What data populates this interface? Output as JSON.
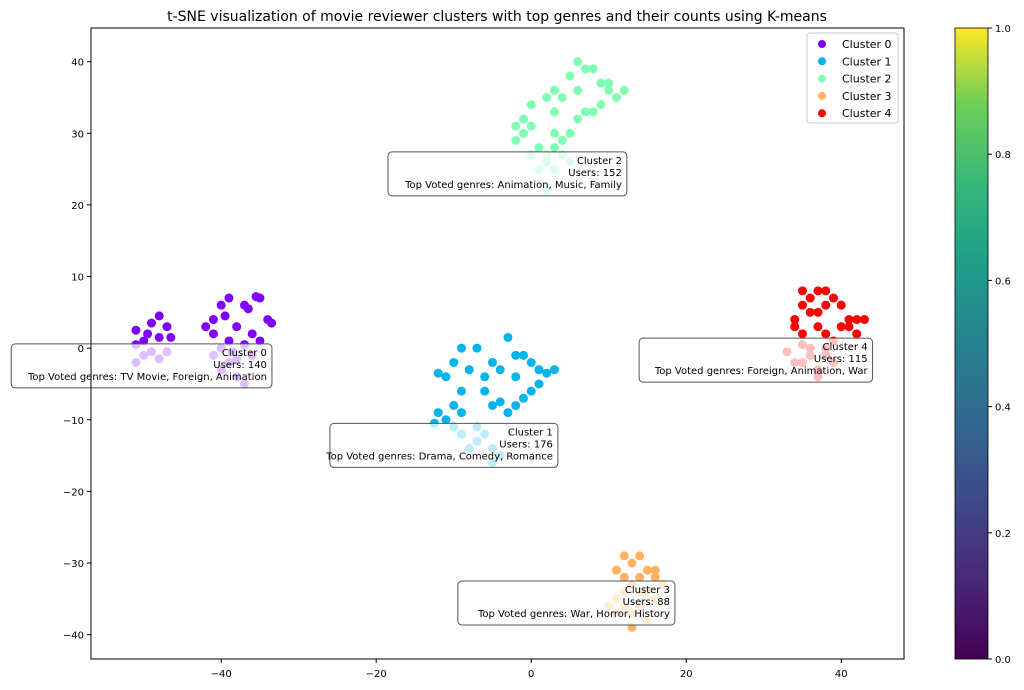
{
  "chart_data": {
    "type": "scatter",
    "title": "t-SNE visualization of movie reviewer clusters with top genres and their counts using K-means",
    "xlabel": "",
    "ylabel": "",
    "xlim": [
      -56.8,
      48.1
    ],
    "ylim": [
      -43.4,
      44.7
    ],
    "xticks": [
      -40,
      -20,
      0,
      20,
      40
    ],
    "yticks": [
      -40,
      -30,
      -20,
      -10,
      0,
      10,
      20,
      30,
      40
    ],
    "grid": false,
    "legend_position": "top-right",
    "series": [
      {
        "name": "Cluster 0",
        "color": "#8000ff",
        "points": [
          [
            -51,
            2.5
          ],
          [
            -50,
            1
          ],
          [
            -49,
            3.5
          ],
          [
            -48,
            4.5
          ],
          [
            -47,
            3
          ],
          [
            -48,
            1.5
          ],
          [
            -50,
            -1
          ],
          [
            -51,
            -2
          ],
          [
            -49,
            -0.5
          ],
          [
            -47,
            -0.5
          ],
          [
            -51,
            0.5
          ],
          [
            -49.5,
            2
          ],
          [
            -46.5,
            1.5
          ],
          [
            -48,
            -1.5
          ],
          [
            -41,
            4
          ],
          [
            -40,
            6
          ],
          [
            -39,
            7
          ],
          [
            -37,
            6
          ],
          [
            -35,
            7
          ],
          [
            -34,
            4
          ],
          [
            -36,
            2
          ],
          [
            -38,
            3
          ],
          [
            -39,
            1
          ],
          [
            -40,
            0
          ],
          [
            -41,
            2
          ],
          [
            -37,
            0.5
          ],
          [
            -35,
            1
          ],
          [
            -33.5,
            3.5
          ],
          [
            -39,
            -2
          ],
          [
            -40,
            -3
          ],
          [
            -38,
            -4
          ],
          [
            -37,
            -5
          ],
          [
            -36,
            -1
          ],
          [
            -41,
            -1
          ],
          [
            -38,
            -1.5
          ],
          [
            -36.5,
            5.5
          ],
          [
            -42,
            3
          ],
          [
            -38.5,
            -0.5
          ],
          [
            -35.5,
            7.2
          ],
          [
            -39.5,
            4.5
          ]
        ]
      },
      {
        "name": "Cluster 1",
        "color": "#00b5eb",
        "points": [
          [
            -12,
            -9
          ],
          [
            -11,
            -10
          ],
          [
            -12.5,
            -10.5
          ],
          [
            -10,
            -8
          ],
          [
            -9,
            -9
          ],
          [
            -11,
            -4
          ],
          [
            -12,
            -3.5
          ],
          [
            -10,
            -2
          ],
          [
            -9,
            0
          ],
          [
            -7,
            0
          ],
          [
            -8,
            -3
          ],
          [
            -6,
            -4
          ],
          [
            -5,
            -2
          ],
          [
            -3,
            1.5
          ],
          [
            -2,
            -1
          ],
          [
            -1,
            -1
          ],
          [
            0,
            -2
          ],
          [
            1,
            -3
          ],
          [
            2,
            -3.5
          ],
          [
            3,
            -3
          ],
          [
            1,
            -5
          ],
          [
            0,
            -6
          ],
          [
            -1,
            -7
          ],
          [
            -2,
            -8
          ],
          [
            -3,
            -9
          ],
          [
            -4,
            -7.5
          ],
          [
            -5,
            -8
          ],
          [
            -6,
            -6
          ],
          [
            -7,
            -11
          ],
          [
            -6,
            -12
          ],
          [
            -7,
            -13
          ],
          [
            -5,
            -14
          ],
          [
            -4,
            -15
          ],
          [
            -8,
            -14
          ],
          [
            -9,
            -12
          ],
          [
            -2,
            -4
          ],
          [
            -4,
            -3
          ],
          [
            -9,
            -6
          ],
          [
            -10,
            -11
          ],
          [
            -5,
            -16
          ]
        ]
      },
      {
        "name": "Cluster 2",
        "color": "#80ffb4",
        "points": [
          [
            -2,
            31
          ],
          [
            -1,
            30
          ],
          [
            -2,
            29
          ],
          [
            -1,
            32
          ],
          [
            0,
            34
          ],
          [
            0,
            31
          ],
          [
            1,
            28
          ],
          [
            2,
            27
          ],
          [
            3,
            28
          ],
          [
            4,
            29
          ],
          [
            5,
            30
          ],
          [
            2,
            26
          ],
          [
            3,
            25
          ],
          [
            1,
            25
          ],
          [
            4,
            27
          ],
          [
            3,
            30
          ],
          [
            2,
            35
          ],
          [
            3,
            36
          ],
          [
            4,
            35
          ],
          [
            5,
            38
          ],
          [
            6,
            40
          ],
          [
            7,
            39
          ],
          [
            8,
            39
          ],
          [
            6,
            36
          ],
          [
            7,
            33
          ],
          [
            8,
            33
          ],
          [
            9,
            34
          ],
          [
            10,
            36
          ],
          [
            11,
            35
          ],
          [
            12,
            36
          ],
          [
            10,
            37
          ],
          [
            9,
            37
          ],
          [
            3,
            33
          ],
          [
            6,
            32
          ],
          [
            2,
            22
          ],
          [
            5,
            26
          ],
          [
            0,
            27
          ]
        ]
      },
      {
        "name": "Cluster 3",
        "color": "#ffb360",
        "points": [
          [
            12,
            -29
          ],
          [
            14,
            -29
          ],
          [
            13,
            -30
          ],
          [
            15,
            -31
          ],
          [
            16,
            -32
          ],
          [
            17,
            -33
          ],
          [
            12,
            -32
          ],
          [
            13,
            -33
          ],
          [
            14,
            -32
          ],
          [
            11,
            -31
          ],
          [
            12,
            -34
          ],
          [
            15,
            -34
          ],
          [
            16,
            -35
          ],
          [
            11,
            -35
          ],
          [
            10,
            -36
          ],
          [
            12,
            -36
          ],
          [
            13,
            -37
          ],
          [
            14,
            -36
          ],
          [
            15,
            -38
          ],
          [
            13,
            -39
          ],
          [
            11,
            -37
          ],
          [
            16,
            -31
          ],
          [
            14,
            -34
          ]
        ]
      },
      {
        "name": "Cluster 4",
        "color": "#ff0000",
        "points": [
          [
            34,
            4
          ],
          [
            34,
            3
          ],
          [
            35,
            2
          ],
          [
            35,
            6
          ],
          [
            36,
            7
          ],
          [
            37,
            8
          ],
          [
            38,
            8
          ],
          [
            39,
            7
          ],
          [
            38,
            6
          ],
          [
            37,
            5
          ],
          [
            36,
            5
          ],
          [
            35,
            8
          ],
          [
            37,
            3
          ],
          [
            38,
            2
          ],
          [
            39,
            1
          ],
          [
            40,
            6
          ],
          [
            41,
            4
          ],
          [
            42,
            4
          ],
          [
            43,
            4
          ],
          [
            41,
            3
          ],
          [
            40,
            3
          ],
          [
            42,
            2
          ],
          [
            33,
            -0.5
          ],
          [
            34,
            -2
          ],
          [
            35,
            -2
          ],
          [
            36,
            -1
          ],
          [
            37,
            -3
          ],
          [
            38,
            -1
          ],
          [
            39,
            -2
          ],
          [
            37,
            -4
          ],
          [
            36,
            0
          ],
          [
            35,
            0.5
          ],
          [
            38,
            0
          ]
        ]
      }
    ],
    "annotations": [
      {
        "x": -34.1,
        "y": -0.8,
        "lines": [
          "Cluster 0",
          "Users: 140",
          "Top Voted genres: TV Movie, Foreign, Animation"
        ]
      },
      {
        "x": 2.8,
        "y": -11.9,
        "lines": [
          "Cluster 1",
          "Users: 176",
          "Top Voted genres: Drama, Comedy, Romance"
        ]
      },
      {
        "x": 11.7,
        "y": 26.0,
        "lines": [
          "Cluster 2",
          "Users: 152",
          "Top Voted genres: Animation, Music, Family"
        ]
      },
      {
        "x": 17.9,
        "y": -33.9,
        "lines": [
          "Cluster 3",
          "Users: 88",
          "Top Voted genres: War, Horror, History"
        ]
      },
      {
        "x": 43.4,
        "y": 0.0,
        "lines": [
          "Cluster 4",
          "Users: 115",
          "Top Voted genres: Foreign, Animation, War"
        ]
      }
    ],
    "colorbar": {
      "range": [
        0.0,
        1.0
      ],
      "ticks": [
        "0.0",
        "0.2",
        "0.4",
        "0.6",
        "0.8",
        "1.0"
      ],
      "colormap": "viridis"
    }
  }
}
